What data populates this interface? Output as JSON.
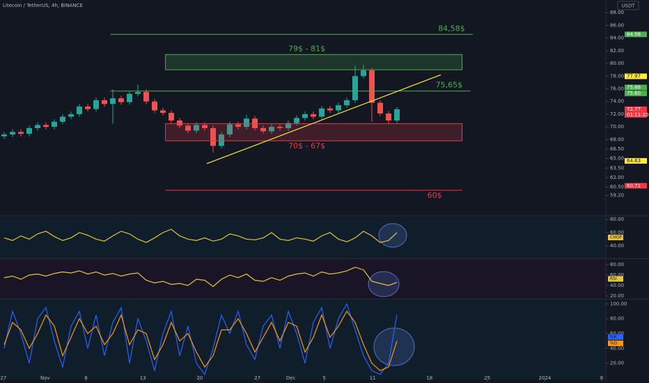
{
  "header": {
    "symbol": "Litecoin / TetherUS, 4h, BINANCE",
    "currency": "USDT"
  },
  "chart_data": [
    {
      "type": "candlestick",
      "open": [
        68.5,
        68.8,
        69.2,
        68.9,
        69.8,
        70.3,
        70.0,
        70.8,
        71.6,
        72.0,
        73.2,
        72.8,
        74.2,
        73.6,
        74.5,
        73.9,
        75.2,
        75.5,
        74.0,
        72.6,
        72.2,
        71.0,
        70.2,
        69.4,
        70.3,
        69.8,
        67.0,
        68.8,
        70.4,
        70.0,
        71.3,
        69.8,
        69.3,
        70.0,
        69.8,
        70.6,
        71.4,
        72.0,
        71.6,
        72.9,
        72.6,
        73.4,
        74.2,
        78.0,
        78.9,
        73.8,
        72.1,
        71.0
      ],
      "high": [
        69.2,
        69.6,
        69.6,
        70.2,
        70.7,
        70.7,
        71.2,
        72.0,
        72.4,
        73.6,
        73.6,
        74.6,
        74.6,
        75.9,
        74.9,
        75.6,
        76.6,
        75.9,
        74.4,
        73.0,
        72.6,
        71.4,
        70.6,
        70.7,
        70.7,
        70.2,
        69.2,
        70.8,
        70.8,
        71.9,
        71.7,
        70.2,
        70.4,
        70.4,
        71.0,
        71.8,
        72.4,
        72.4,
        73.3,
        73.3,
        73.8,
        74.6,
        79.6,
        79.8,
        79.3,
        74.2,
        72.5,
        73.1
      ],
      "low": [
        68.1,
        68.4,
        68.5,
        68.5,
        69.4,
        69.6,
        69.6,
        70.4,
        71.2,
        71.6,
        72.4,
        72.4,
        73.2,
        70.5,
        73.5,
        73.5,
        74.8,
        73.6,
        72.2,
        71.8,
        70.6,
        69.8,
        69.0,
        69.0,
        69.4,
        66.0,
        66.6,
        68.4,
        69.6,
        69.6,
        69.4,
        68.9,
        68.9,
        69.4,
        69.4,
        70.2,
        71.0,
        71.2,
        71.2,
        72.2,
        72.2,
        73.0,
        73.8,
        77.6,
        70.8,
        71.7,
        70.4,
        70.6
      ],
      "close": [
        68.8,
        69.2,
        68.9,
        69.8,
        70.3,
        70.0,
        70.8,
        71.6,
        72.0,
        73.2,
        72.8,
        74.2,
        73.6,
        74.5,
        73.9,
        75.2,
        75.5,
        74.0,
        72.6,
        72.2,
        71.0,
        70.2,
        69.4,
        70.3,
        69.8,
        67.0,
        68.8,
        70.4,
        70.0,
        71.3,
        69.8,
        69.3,
        70.0,
        69.8,
        70.6,
        71.4,
        72.0,
        71.6,
        72.9,
        72.6,
        73.4,
        74.2,
        78.0,
        78.9,
        73.8,
        72.1,
        71.0,
        72.77
      ],
      "up_color": "#26a69a",
      "down_color": "#ef5350",
      "xlim": [
        -0.5,
        72
      ],
      "xticks": [
        {
          "value": -0.1,
          "label": "27"
        },
        {
          "value": 4.9,
          "label": "Nov"
        },
        {
          "value": 9.8,
          "label": "6"
        },
        {
          "value": 16.6,
          "label": "13"
        },
        {
          "value": 23.4,
          "label": "20"
        },
        {
          "value": 30.3,
          "label": "27"
        },
        {
          "value": 34.3,
          "label": "Dec"
        },
        {
          "value": 38.3,
          "label": "5"
        },
        {
          "value": 44.1,
          "label": "11"
        },
        {
          "value": 50.9,
          "label": "18"
        },
        {
          "value": 57.8,
          "label": "25"
        },
        {
          "value": 64.7,
          "label": "2024"
        },
        {
          "value": 71.5,
          "label": "8"
        }
      ],
      "ylim": [
        57.5,
        90
      ],
      "yticks": [
        {
          "value": 88,
          "label": "88.00"
        },
        {
          "value": 86,
          "label": "86.00"
        },
        {
          "value": 84,
          "label": "84.00"
        },
        {
          "value": 82,
          "label": "82.00"
        },
        {
          "value": 80,
          "label": "80.00"
        },
        {
          "value": 78,
          "label": "78.00"
        },
        {
          "value": 76,
          "label": "76.00"
        },
        {
          "value": 74,
          "label": "74.00"
        },
        {
          "value": 72,
          "label": "72.00"
        },
        {
          "value": 70,
          "label": "70.00"
        },
        {
          "value": 68,
          "label": "68.00"
        },
        {
          "value": 66.5,
          "label": "66.50"
        },
        {
          "value": 65,
          "label": "65.00"
        },
        {
          "value": 63.5,
          "label": "63.50"
        },
        {
          "value": 62,
          "label": "62.00"
        },
        {
          "value": 60.5,
          "label": "60.50"
        },
        {
          "value": 59.2,
          "label": "59.20"
        }
      ],
      "levels": [
        {
          "value": 84.58,
          "label": "84,58$",
          "color": "#4caf50",
          "x": [
            12.7,
            56.1
          ]
        },
        {
          "value": 75.65,
          "label": "75,65$",
          "color": "#4caf50",
          "x": [
            12.7,
            55.8
          ]
        },
        {
          "value": 60,
          "label": "60$",
          "color": "#f23645",
          "x": [
            19.3,
            54.8
          ]
        }
      ],
      "zones": [
        {
          "low": 79,
          "high": 81.4,
          "label": "79$ - 81$",
          "color": "#4caf50",
          "x": [
            19.3,
            54.8
          ]
        },
        {
          "low": 67.8,
          "high": 70.5,
          "label": "70$ - 67$",
          "color": "#f23645",
          "x": [
            19.3,
            54.8
          ]
        }
      ],
      "trendline": {
        "x": [
          24.25,
          52.25
        ],
        "y": [
          64.2,
          78.2
        ],
        "color": "#ffeb3b"
      },
      "price_tags": [
        {
          "value": 84.58,
          "label": "84.58",
          "color": "#4caf50"
        },
        {
          "value": 77.97,
          "label": "77.97",
          "color": "#ffeb3b"
        },
        {
          "value": 75.88,
          "label": "75.88",
          "color": "#4caf50"
        },
        {
          "value": 75.6,
          "label": "75.60",
          "color": "#4caf50"
        },
        {
          "value": 72.77,
          "label": "72.77",
          "color": "#f23645"
        },
        {
          "value": 64.63,
          "label": "64.63",
          "color": "#ffeb3b"
        },
        {
          "value": 60.71,
          "label": "60.71",
          "color": "#f23645"
        }
      ],
      "countdown": "01:11:20"
    },
    {
      "type": "line",
      "name": "CHOP",
      "series": [
        {
          "name": "CHOP",
          "color": "#e8c43c",
          "values": [
            52,
            48,
            55,
            50,
            58,
            62,
            54,
            48,
            52,
            60,
            56,
            50,
            47,
            55,
            62,
            58,
            50,
            45,
            52,
            60,
            65,
            55,
            50,
            48,
            52,
            47,
            50,
            58,
            55,
            50,
            49,
            52,
            60,
            50,
            48,
            52,
            50,
            47,
            55,
            60,
            50,
            46,
            52,
            62,
            55,
            45,
            48,
            60
          ]
        }
      ],
      "ylim": [
        22,
        83.2
      ],
      "yticks": [
        {
          "value": 80,
          "label": "80.00"
        },
        {
          "value": 60,
          "label": "60.00"
        },
        {
          "value": 40,
          "label": "40.00"
        }
      ]
    },
    {
      "type": "line",
      "name": "RSI",
      "series": [
        {
          "name": "RSI",
          "color": "#e8c43c",
          "values": [
            55,
            58,
            52,
            60,
            62,
            58,
            63,
            66,
            64,
            68,
            62,
            66,
            60,
            63,
            58,
            62,
            64,
            50,
            45,
            48,
            42,
            44,
            40,
            52,
            50,
            38,
            52,
            60,
            55,
            62,
            50,
            48,
            55,
            50,
            58,
            62,
            64,
            58,
            66,
            62,
            64,
            68,
            75,
            70,
            48,
            44,
            40,
            46
          ]
        }
      ],
      "ylim": [
        16,
        89.3
      ],
      "yticks": [
        {
          "value": 80,
          "label": "80.00"
        },
        {
          "value": 60,
          "label": "60.00"
        },
        {
          "value": 40,
          "label": "40.00"
        },
        {
          "value": 20,
          "label": "20.00"
        }
      ]
    },
    {
      "type": "line",
      "series": [
        {
          "name": "%K",
          "color": "#2962ff",
          "values": [
            40,
            90,
            60,
            20,
            80,
            95,
            50,
            15,
            70,
            90,
            40,
            85,
            30,
            75,
            95,
            20,
            80,
            50,
            10,
            60,
            90,
            30,
            70,
            20,
            5,
            40,
            85,
            60,
            90,
            45,
            25,
            70,
            85,
            40,
            90,
            60,
            20,
            75,
            95,
            40,
            80,
            100,
            65,
            30,
            10,
            5,
            20,
            85
          ]
        },
        {
          "name": "%D",
          "color": "#ff9800",
          "values": [
            45,
            75,
            65,
            40,
            60,
            85,
            70,
            30,
            55,
            80,
            60,
            70,
            45,
            60,
            85,
            45,
            65,
            60,
            25,
            45,
            75,
            50,
            60,
            35,
            15,
            30,
            65,
            65,
            80,
            60,
            35,
            55,
            75,
            50,
            75,
            70,
            35,
            55,
            85,
            55,
            70,
            90,
            75,
            45,
            20,
            10,
            15,
            50
          ]
        }
      ],
      "ylim": [
        -1.9,
        105
      ],
      "yticks": [
        {
          "value": 100,
          "label": "100.00"
        },
        {
          "value": 80,
          "label": "80.00"
        },
        {
          "value": 60,
          "label": "60.00"
        },
        {
          "value": 40,
          "label": "40.00"
        },
        {
          "value": 20,
          "label": "20.00"
        }
      ]
    }
  ]
}
